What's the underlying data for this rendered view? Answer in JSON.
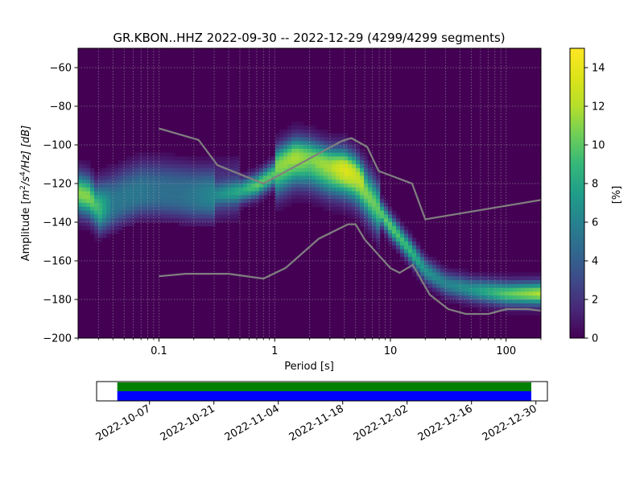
{
  "chart_data": {
    "type": "heatmap",
    "title": "GR.KBON..HHZ   2022-09-30 -- 2022-12-29  (4299/4299 segments)",
    "xlabel": "Period [s]",
    "ylabel_main": "Amplitude [",
    "ylabel_unit": "m",
    "ylabel_sup1": "2",
    "ylabel_slash": "/s",
    "ylabel_sup2": "4",
    "ylabel_tail": "/Hz] [dB]",
    "x_scale": "log",
    "xlim": [
      0.02,
      200
    ],
    "ylim": [
      -200,
      -50
    ],
    "x_ticks": [
      {
        "value": 0.1,
        "label": "0.1"
      },
      {
        "value": 1,
        "label": "1"
      },
      {
        "value": 10,
        "label": "10"
      },
      {
        "value": 100,
        "label": "100"
      }
    ],
    "y_ticks": [
      {
        "value": -60,
        "label": "−60"
      },
      {
        "value": -80,
        "label": "−80"
      },
      {
        "value": -100,
        "label": "−100"
      },
      {
        "value": -120,
        "label": "−120"
      },
      {
        "value": -140,
        "label": "−140"
      },
      {
        "value": -160,
        "label": "−160"
      },
      {
        "value": -180,
        "label": "−180"
      },
      {
        "value": -200,
        "label": "−200"
      }
    ],
    "grid": true,
    "colorbar": {
      "label": "[%]",
      "range": [
        0,
        15
      ],
      "ticks": [
        {
          "value": 0,
          "label": "0"
        },
        {
          "value": 2,
          "label": "2"
        },
        {
          "value": 4,
          "label": "4"
        },
        {
          "value": 6,
          "label": "6"
        },
        {
          "value": 8,
          "label": "8"
        },
        {
          "value": 10,
          "label": "10"
        },
        {
          "value": 12,
          "label": "12"
        },
        {
          "value": 14,
          "label": "14"
        }
      ],
      "colormap": "viridis"
    },
    "mode_curve": {
      "period": [
        0.02,
        0.025,
        0.03,
        0.04,
        0.05,
        0.07,
        0.1,
        0.15,
        0.2,
        0.3,
        0.5,
        0.7,
        1,
        1.5,
        2,
        3,
        4,
        5,
        6,
        8,
        10,
        15,
        20,
        30,
        50,
        100,
        200
      ],
      "db": [
        -125,
        -127,
        -133,
        -130,
        -127,
        -124,
        -124,
        -125,
        -126,
        -126,
        -124,
        -121,
        -115,
        -109,
        -110,
        -114,
        -115,
        -118,
        -124,
        -134,
        -142,
        -155,
        -165,
        -172,
        -175,
        -177,
        -177
      ],
      "intensity": [
        11,
        11,
        9,
        5,
        5,
        5,
        4.5,
        4.5,
        5,
        6,
        8,
        10,
        10,
        11,
        10,
        11,
        13,
        12,
        11,
        10,
        10,
        9,
        7,
        6,
        7,
        10,
        12
      ]
    },
    "noise_model_high": {
      "period": [
        0.1,
        0.22,
        0.32,
        0.8,
        3.8,
        4.6,
        6.3,
        7.9,
        15.4,
        20,
        354.8
      ],
      "db": [
        -91.5,
        -97.4,
        -110.5,
        -120,
        -98,
        -96.5,
        -101,
        -113.5,
        -120,
        -138.5,
        -126
      ]
    },
    "noise_model_low": {
      "period": [
        0.1,
        0.17,
        0.4,
        0.8,
        1.24,
        2.4,
        4.3,
        5,
        6,
        10,
        12,
        15.6,
        21.9,
        31.6,
        45,
        70,
        101,
        154,
        328
      ],
      "db": [
        -168,
        -166.7,
        -166.7,
        -169.2,
        -163.7,
        -148.6,
        -141.1,
        -141.1,
        -149,
        -163.8,
        -166.2,
        -162.1,
        -177.5,
        -185,
        -187.5,
        -187.5,
        -185,
        -185,
        -187.5
      ]
    },
    "coverage": {
      "tick_labels": [
        "2022-10-07",
        "2022-10-21",
        "2022-11-04",
        "2022-11-18",
        "2022-12-02",
        "2022-12-16",
        "2022-12-30"
      ],
      "tick_days_from_start": [
        7,
        21,
        35,
        49,
        63,
        77,
        91
      ],
      "axis_range_days": [
        -4.5,
        93.5
      ],
      "data_range_days": [
        0,
        90
      ],
      "bars": [
        {
          "color": "#008000"
        },
        {
          "color": "#0000ff"
        }
      ]
    }
  }
}
